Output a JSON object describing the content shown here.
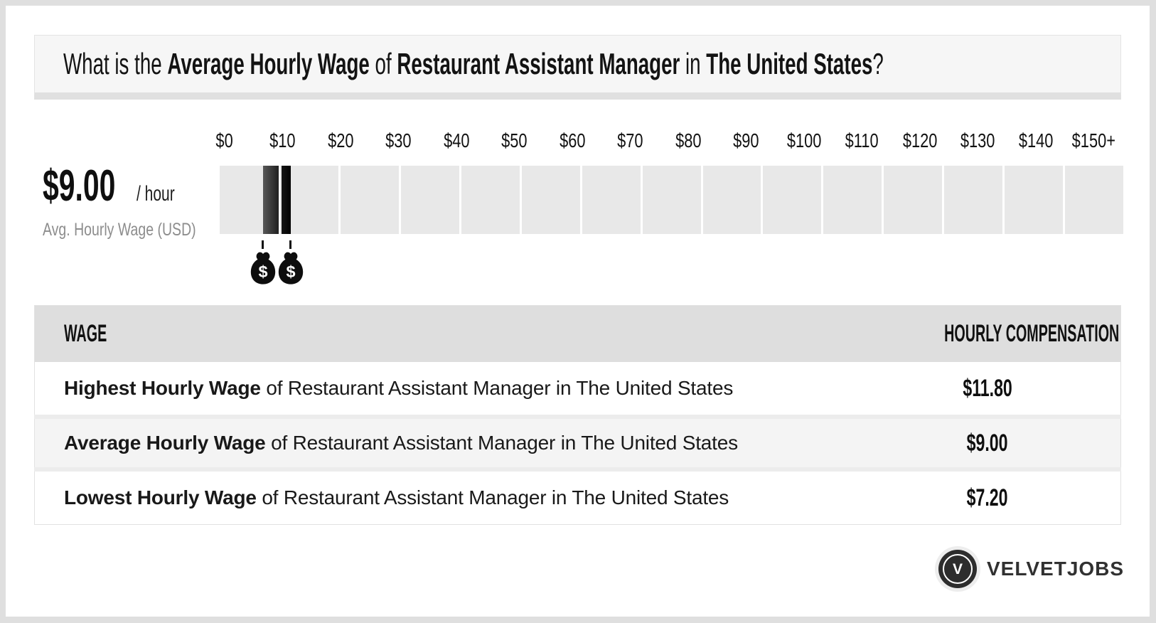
{
  "header": {
    "title_parts": [
      {
        "text": "What is the ",
        "bold": false
      },
      {
        "text": "Average Hourly Wage",
        "bold": true
      },
      {
        "text": " of ",
        "bold": false
      },
      {
        "text": "Restaurant Assistant Manager",
        "bold": true
      },
      {
        "text": " in ",
        "bold": false
      },
      {
        "text": "The United States",
        "bold": true
      },
      {
        "text": "?",
        "bold": false
      }
    ]
  },
  "summary": {
    "amount": "$9.00",
    "unit": "/ hour",
    "caption": "Avg. Hourly Wage (USD)"
  },
  "chart_data": {
    "type": "bar",
    "subtype": "horizontal-range-scale",
    "title": "What is the Average Hourly Wage of Restaurant Assistant Manager in The United States?",
    "unit": "USD per hour",
    "x_axis": {
      "tick_labels": [
        "$0",
        "$10",
        "$20",
        "$30",
        "$40",
        "$50",
        "$60",
        "$70",
        "$80",
        "$90",
        "$100",
        "$110",
        "$120",
        "$130",
        "$140",
        "$150+"
      ],
      "min": 0,
      "max": 150,
      "tick_interval": 10,
      "segments": 15
    },
    "values": {
      "lowest": 7.2,
      "average": 9.0,
      "highest": 11.8
    },
    "range_bar": {
      "from": 7.2,
      "to": 11.8,
      "split_at": 10
    },
    "markers_usd": [
      7.2,
      11.8
    ],
    "marker_icon": "money-bag-icon",
    "grid": false,
    "legend": false
  },
  "table": {
    "headers": [
      "WAGE",
      "HOURLY COMPENSATION"
    ],
    "rows": [
      {
        "bold": "Highest Hourly Wage",
        "rest": " of Restaurant Assistant Manager in The United States",
        "value": "$11.80"
      },
      {
        "bold": "Average Hourly Wage",
        "rest": " of Restaurant Assistant Manager in The United States",
        "value": "$9.00"
      },
      {
        "bold": "Lowest Hourly Wage",
        "rest": " of Restaurant Assistant Manager in The United States",
        "value": "$7.20"
      }
    ]
  },
  "logo": {
    "monogram": "V",
    "text": "VELVETJOBS"
  }
}
